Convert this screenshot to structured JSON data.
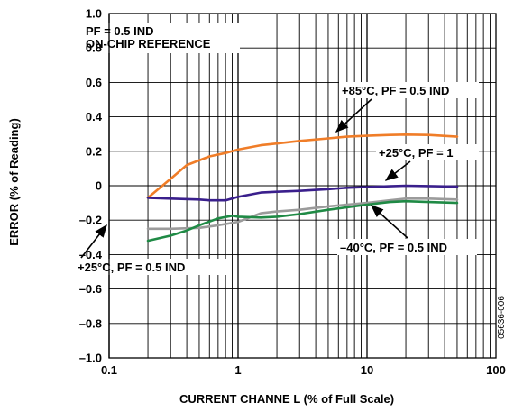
{
  "chart_data": {
    "type": "line",
    "xlabel": "CURRENT CHANNE L (% of Full Scale)",
    "ylabel": "ERROR (% of Reading)",
    "x_scale": "log",
    "xlim": [
      0.1,
      100
    ],
    "ylim": [
      -1.0,
      1.0
    ],
    "grid": true,
    "x_ticks": [
      "0.1",
      "1",
      "10",
      "100"
    ],
    "y_ticks": [
      "1.0",
      "0.8",
      "0.6",
      "0.4",
      "0.2",
      "0",
      "–0.2",
      "–0.4",
      "–0.6",
      "–0.8",
      "–1.0"
    ],
    "legend_box": [
      "PF = 0.5 IND",
      "ON-CHIP REFERENCE"
    ],
    "figure_id": "05636-006",
    "series": [
      {
        "name": "+85°C, PF = 0.5 IND",
        "color": "#f07d28",
        "x": [
          0.2,
          0.3,
          0.4,
          0.6,
          0.8,
          1,
          1.5,
          2,
          3,
          5,
          7,
          10,
          15,
          20,
          30,
          50
        ],
        "y": [
          -0.07,
          0.04,
          0.12,
          0.17,
          0.19,
          0.21,
          0.235,
          0.245,
          0.26,
          0.275,
          0.285,
          0.29,
          0.295,
          0.297,
          0.295,
          0.285
        ]
      },
      {
        "name": "+25°C, PF = 1",
        "color": "#3a1f8c",
        "x": [
          0.2,
          0.3,
          0.5,
          0.6,
          0.8,
          1,
          1.5,
          2,
          3,
          5,
          7,
          10,
          15,
          20,
          30,
          50
        ],
        "y": [
          -0.07,
          -0.075,
          -0.08,
          -0.085,
          -0.085,
          -0.065,
          -0.04,
          -0.035,
          -0.03,
          -0.02,
          -0.012,
          -0.008,
          -0.003,
          0.0,
          -0.002,
          -0.005
        ]
      },
      {
        "name": "–40°C, PF = 0.5 IND",
        "color": "#9b9b9b",
        "x": [
          0.2,
          0.3,
          0.5,
          0.7,
          1,
          1.5,
          2,
          3,
          5,
          7,
          10,
          15,
          20,
          30,
          50
        ],
        "y": [
          -0.25,
          -0.25,
          -0.245,
          -0.23,
          -0.21,
          -0.16,
          -0.15,
          -0.14,
          -0.12,
          -0.11,
          -0.1,
          -0.085,
          -0.075,
          -0.075,
          -0.08
        ]
      },
      {
        "name": "+25°C, PF = 0.5 IND",
        "color": "#1f8a45",
        "x": [
          0.2,
          0.3,
          0.4,
          0.5,
          0.7,
          0.9,
          1,
          1.5,
          2,
          3,
          5,
          7,
          10,
          15,
          20,
          30,
          50
        ],
        "y": [
          -0.32,
          -0.29,
          -0.26,
          -0.23,
          -0.19,
          -0.175,
          -0.18,
          -0.185,
          -0.18,
          -0.165,
          -0.14,
          -0.125,
          -0.11,
          -0.095,
          -0.09,
          -0.095,
          -0.1
        ]
      }
    ],
    "annotations": [
      {
        "text": "PF = 0.5 IND",
        "target_series": null
      },
      {
        "text": "ON-CHIP REFERENCE",
        "target_series": null
      },
      {
        "text": "+85°C, PF = 0.5 IND",
        "target_series": 0
      },
      {
        "text": "+25°C, PF = 1",
        "target_series": 1
      },
      {
        "text": "–40°C, PF = 0.5 IND",
        "target_series": 2
      },
      {
        "text": "+25°C, PF = 0.5 IND",
        "target_series": 3
      }
    ]
  }
}
